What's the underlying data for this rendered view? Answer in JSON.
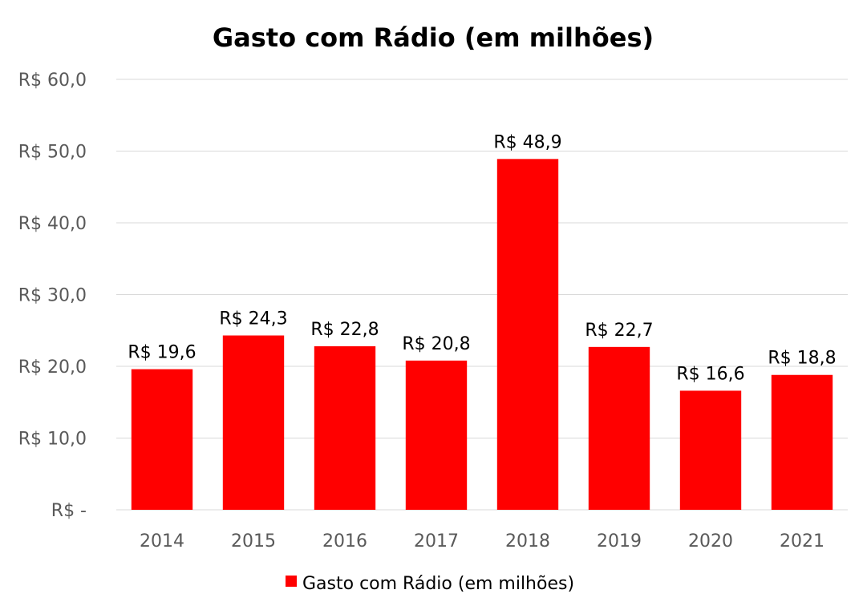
{
  "chart_data": {
    "type": "bar",
    "title": "Gasto com Rádio (em milhões)",
    "categories": [
      "2014",
      "2015",
      "2016",
      "2017",
      "2018",
      "2019",
      "2020",
      "2021"
    ],
    "series": [
      {
        "name": "Gasto com Rádio (em milhões)",
        "values": [
          19.6,
          24.3,
          22.8,
          20.8,
          48.9,
          22.7,
          16.6,
          18.8
        ],
        "data_labels": [
          "R$ 19,6",
          "R$ 24,3",
          "R$ 22,8",
          "R$ 20,8",
          "R$ 48,9",
          "R$ 22,7",
          "R$ 16,6",
          "R$ 18,8"
        ],
        "color": "#ff0000"
      }
    ],
    "ylim": [
      0,
      60
    ],
    "yticks": [
      0,
      10,
      20,
      30,
      40,
      50,
      60
    ],
    "ytick_labels": [
      "R$ -",
      "R$ 10,0",
      "R$ 20,0",
      "R$ 30,0",
      "R$ 40,0",
      "R$ 50,0",
      "R$ 60,0"
    ],
    "xlabel": "",
    "ylabel": "",
    "grid": true,
    "legend_position": "bottom"
  }
}
